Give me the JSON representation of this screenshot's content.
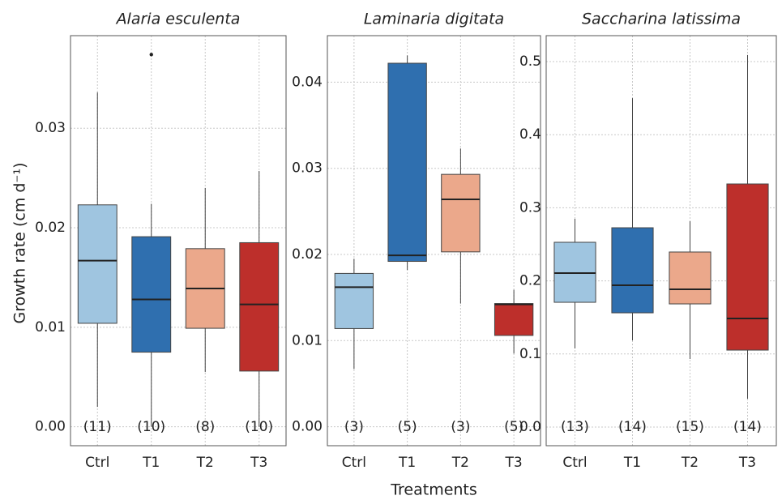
{
  "chart_data": [
    {
      "type": "box",
      "title": "Alaria esculenta",
      "ylabel": "Growth rate (cm d⁻¹)",
      "categories": [
        "Ctrl",
        "T1",
        "T2",
        "T3"
      ],
      "colors": [
        "#9fc5e0",
        "#2f6faf",
        "#eba88b",
        "#bd2f2b"
      ],
      "count_labels": [
        "(11)",
        "(10)",
        "(8)",
        "(10)"
      ],
      "boxes": [
        {
          "whislo": 0.002,
          "q1": 0.0104,
          "med": 0.0167,
          "q3": 0.0223,
          "whishi": 0.0336,
          "fliers": []
        },
        {
          "whislo": 0.0,
          "q1": 0.0075,
          "med": 0.0128,
          "q3": 0.0191,
          "whishi": 0.0224,
          "fliers": [
            0.0374
          ]
        },
        {
          "whislo": 0.0055,
          "q1": 0.0099,
          "med": 0.0139,
          "q3": 0.0179,
          "whishi": 0.024,
          "fliers": []
        },
        {
          "whislo": 0.0,
          "q1": 0.0056,
          "med": 0.0123,
          "q3": 0.0185,
          "whishi": 0.0257,
          "fliers": []
        }
      ],
      "ylim": [
        -0.0019,
        0.0393
      ],
      "yticks": [
        {
          "value": 0,
          "label": "0.00"
        },
        0.01,
        0.02,
        0.03
      ],
      "grid": true
    },
    {
      "type": "box",
      "title": "Laminaria digitata",
      "xlabel": "Treatments",
      "categories": [
        "Ctrl",
        "T1",
        "T2",
        "T3"
      ],
      "colors": [
        "#9fc5e0",
        "#2f6faf",
        "#eba88b",
        "#bd2f2b"
      ],
      "count_labels": [
        "(3)",
        "(5)",
        "(3)",
        "(5)"
      ],
      "boxes": [
        {
          "whislo": 0.0067,
          "q1": 0.0114,
          "med": 0.0162,
          "q3": 0.0178,
          "whishi": 0.0195,
          "fliers": []
        },
        {
          "whislo": 0.0182,
          "q1": 0.0192,
          "med": 0.0199,
          "q3": 0.0422,
          "whishi": 0.0431,
          "fliers": []
        },
        {
          "whislo": 0.0143,
          "q1": 0.0203,
          "med": 0.0264,
          "q3": 0.0293,
          "whishi": 0.0323,
          "fliers": []
        },
        {
          "whislo": 0.0085,
          "q1": 0.0106,
          "med": 0.0142,
          "q3": 0.0143,
          "whishi": 0.0159,
          "fliers": []
        }
      ],
      "ylim": [
        -0.0022,
        0.0454
      ],
      "yticks": [
        {
          "value": 0,
          "label": "0.00"
        },
        0.01,
        0.02,
        0.03,
        0.04
      ],
      "grid": true
    },
    {
      "type": "box",
      "title": "Saccharina latissima",
      "categories": [
        "Ctrl",
        "T1",
        "T2",
        "T3"
      ],
      "colors": [
        "#9fc5e0",
        "#2f6faf",
        "#eba88b",
        "#bd2f2b"
      ],
      "count_labels": [
        "(13)",
        "(14)",
        "(15)",
        "(14)"
      ],
      "boxes": [
        {
          "whislo": 0.1075,
          "q1": 0.1707,
          "med": 0.2106,
          "q3": 0.2528,
          "whishi": 0.285,
          "fliers": []
        },
        {
          "whislo": 0.1186,
          "q1": 0.1563,
          "med": 0.194,
          "q3": 0.2727,
          "whishi": 0.45,
          "fliers": []
        },
        {
          "whislo": 0.0931,
          "q1": 0.1685,
          "med": 0.1885,
          "q3": 0.2395,
          "whishi": 0.2816,
          "fliers": []
        },
        {
          "whislo": 0.0388,
          "q1": 0.1053,
          "med": 0.1486,
          "q3": 0.3326,
          "whishi": 0.509,
          "fliers": []
        }
      ],
      "ylim": [
        -0.0255,
        0.5355
      ],
      "yticks": [
        {
          "value": 0,
          "label": "0.0"
        },
        0.1,
        0.2,
        0.3,
        0.4,
        0.5
      ],
      "grid": true
    }
  ]
}
